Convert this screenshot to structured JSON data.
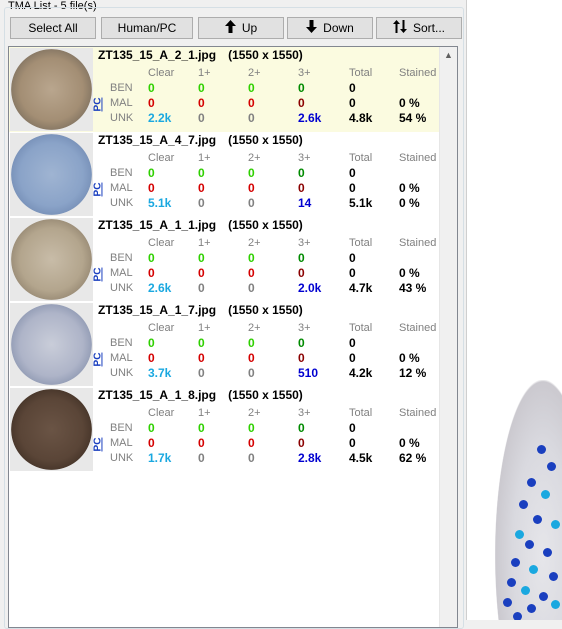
{
  "panel": {
    "title": "TMA List - 5 file(s)"
  },
  "toolbar": {
    "select_all": "Select All",
    "human_pc": "Human/PC",
    "up": "Up",
    "down": "Down",
    "sort": "Sort..."
  },
  "icons": {
    "up": "arrow-up-icon",
    "down": "arrow-down-icon",
    "sort": "sort-arrows-icon"
  },
  "columns": [
    "Clear",
    "1+",
    "2+",
    "3+",
    "Total",
    "Stained"
  ],
  "row_labels": [
    "BEN",
    "MAL",
    "UNK"
  ],
  "pc_label": "PC",
  "items": [
    {
      "name": "ZT135_15_A_2_1.jpg",
      "size": "(1550 x 1550)",
      "selected": true,
      "ben": [
        "0",
        "0",
        "0",
        "0",
        "0",
        ""
      ],
      "mal": [
        "0",
        "0",
        "0",
        "0",
        "0",
        "0 %"
      ],
      "unk": [
        "2.2k",
        "0",
        "0",
        "2.6k",
        "4.8k",
        "54 %"
      ]
    },
    {
      "name": "ZT135_15_A_4_7.jpg",
      "size": "(1550 x 1550)",
      "selected": false,
      "ben": [
        "0",
        "0",
        "0",
        "0",
        "0",
        ""
      ],
      "mal": [
        "0",
        "0",
        "0",
        "0",
        "0",
        "0 %"
      ],
      "unk": [
        "5.1k",
        "0",
        "0",
        "14",
        "5.1k",
        "0 %"
      ]
    },
    {
      "name": "ZT135_15_A_1_1.jpg",
      "size": "(1550 x 1550)",
      "selected": false,
      "ben": [
        "0",
        "0",
        "0",
        "0",
        "0",
        ""
      ],
      "mal": [
        "0",
        "0",
        "0",
        "0",
        "0",
        "0 %"
      ],
      "unk": [
        "2.6k",
        "0",
        "0",
        "2.0k",
        "4.7k",
        "43 %"
      ]
    },
    {
      "name": "ZT135_15_A_1_7.jpg",
      "size": "(1550 x 1550)",
      "selected": false,
      "ben": [
        "0",
        "0",
        "0",
        "0",
        "0",
        ""
      ],
      "mal": [
        "0",
        "0",
        "0",
        "0",
        "0",
        "0 %"
      ],
      "unk": [
        "3.7k",
        "0",
        "0",
        "510",
        "4.2k",
        "12 %"
      ]
    },
    {
      "name": "ZT135_15_A_1_8.jpg",
      "size": "(1550 x 1550)",
      "selected": false,
      "ben": [
        "0",
        "0",
        "0",
        "0",
        "0",
        ""
      ],
      "mal": [
        "0",
        "0",
        "0",
        "0",
        "0",
        "0 %"
      ],
      "unk": [
        "1.7k",
        "0",
        "0",
        "2.8k",
        "4.5k",
        "62 %"
      ]
    }
  ],
  "colors": {
    "ben": "#2fd000",
    "mal": "#d40000",
    "unk_clear": "#1aa8e0",
    "unk_3plus": "#0000d0",
    "selected_bg": "#fbfbe0"
  }
}
